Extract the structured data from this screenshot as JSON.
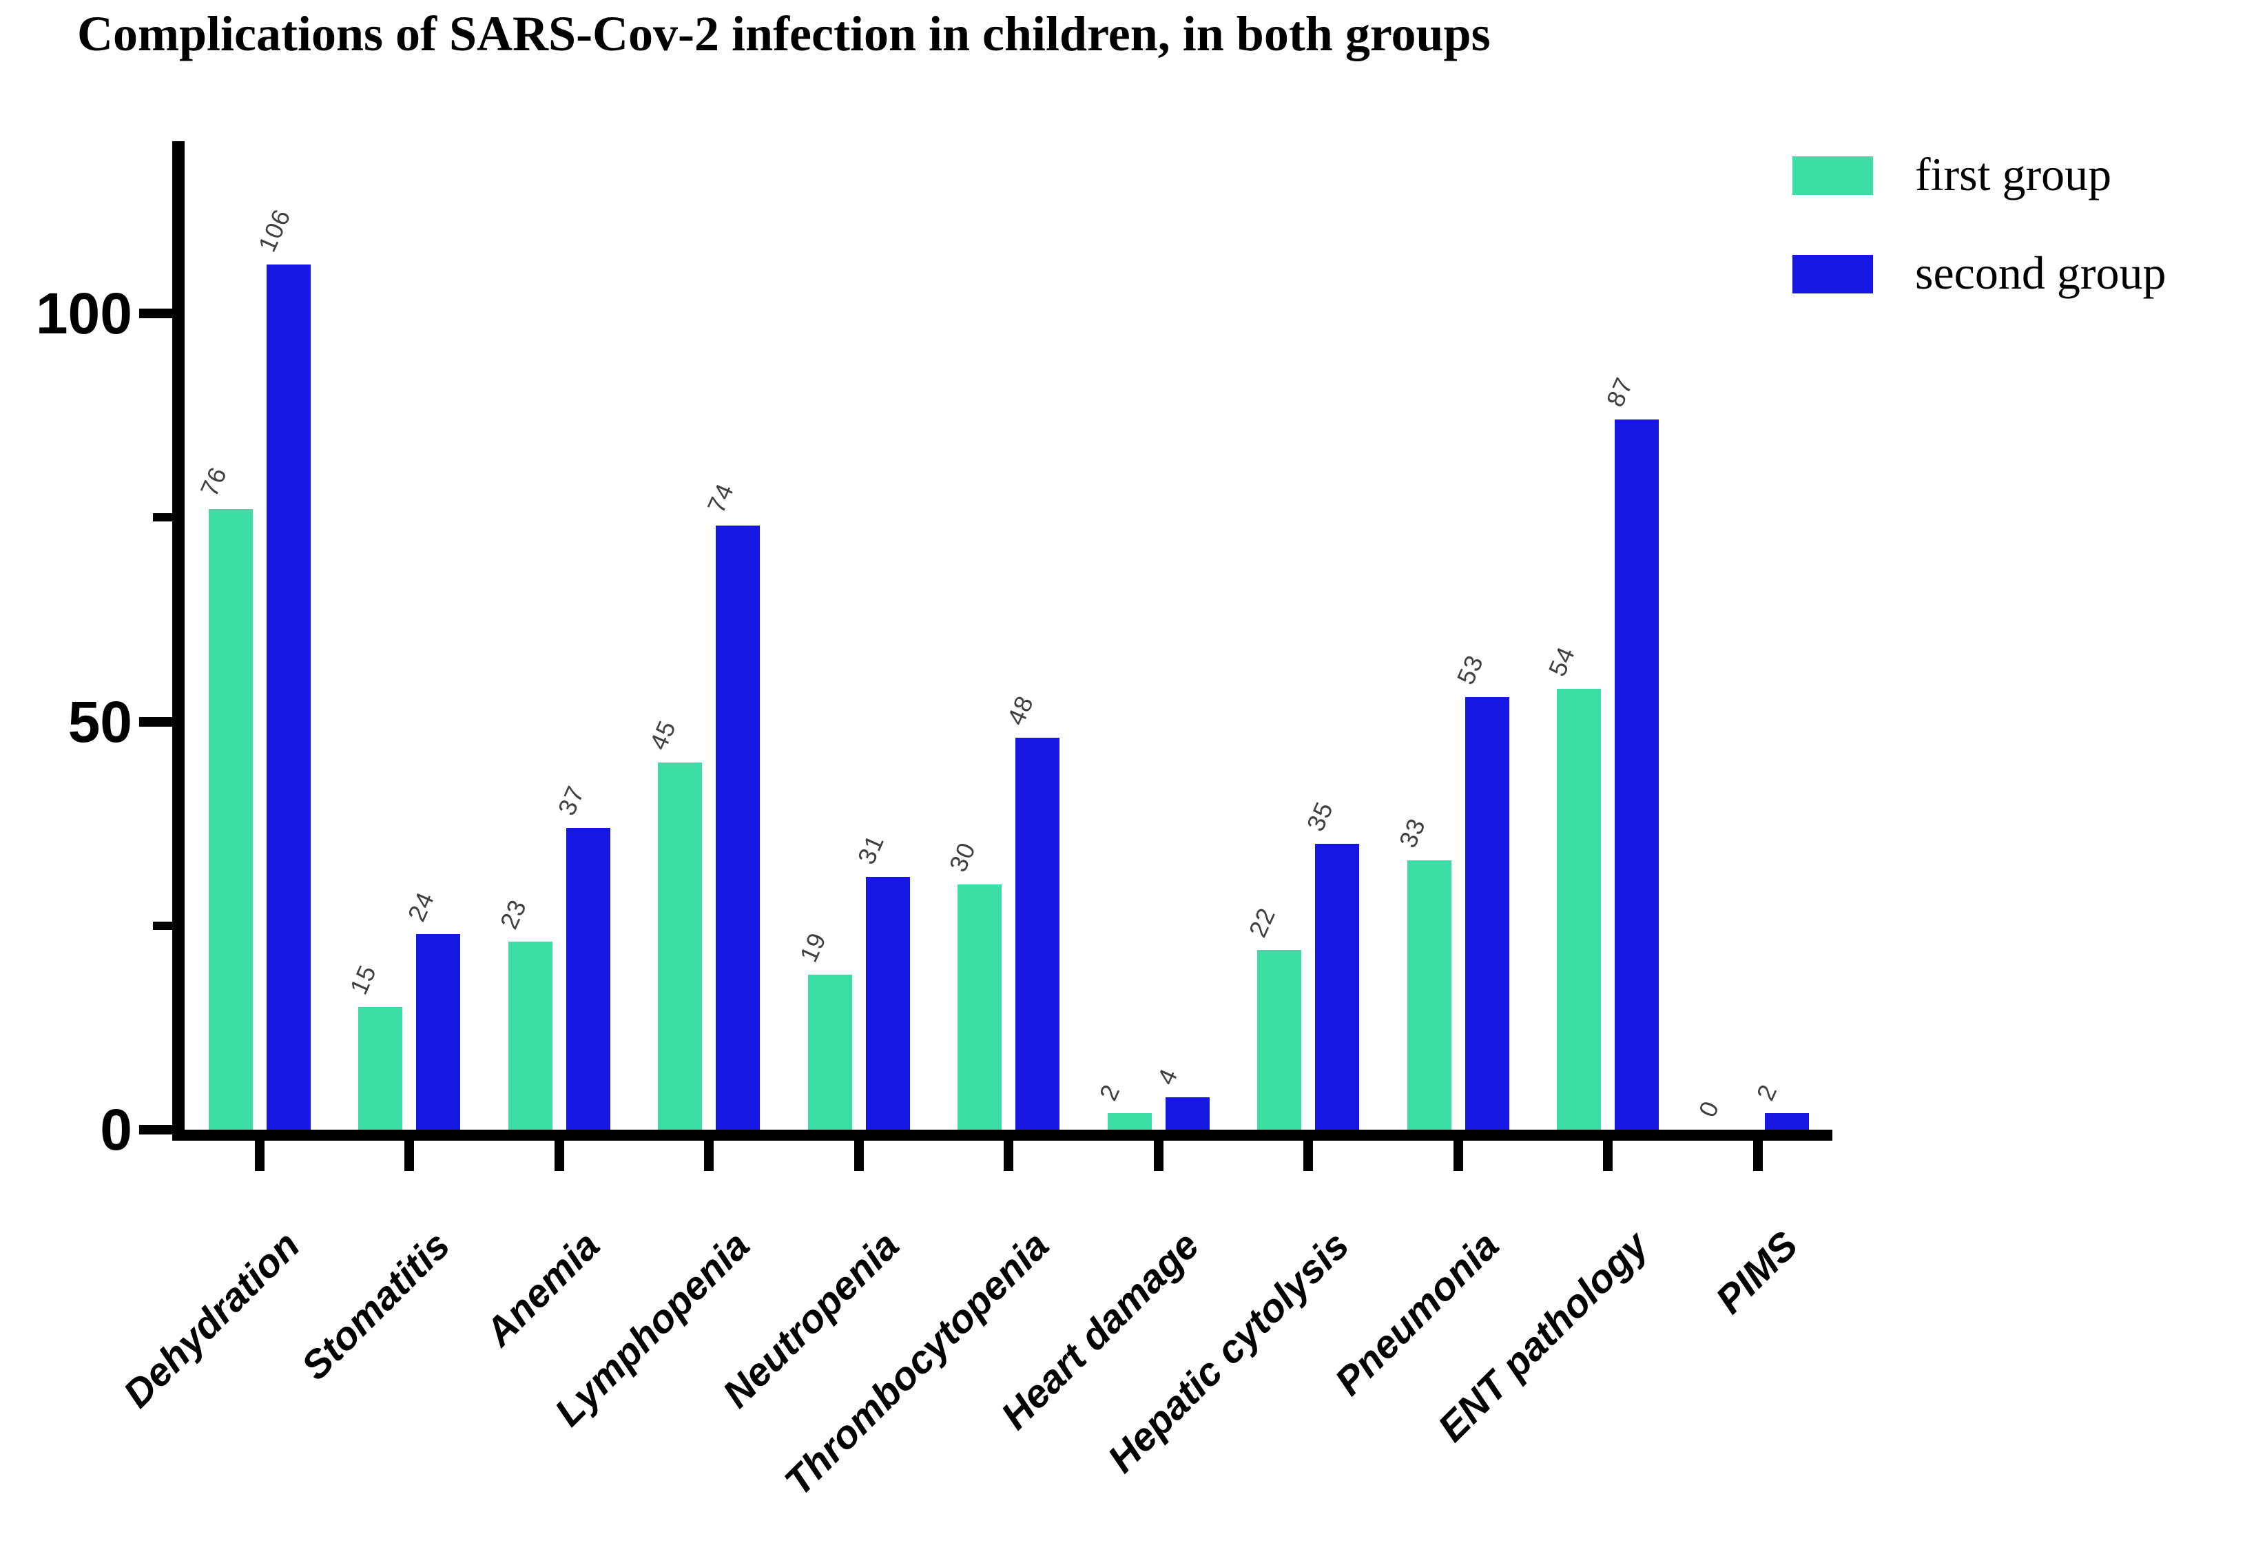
{
  "title": "Complications of SARS-Cov-2 infection in children, in both groups",
  "legend": {
    "items": [
      {
        "label": "first group",
        "color": "#3CDEA5"
      },
      {
        "label": "second group",
        "color": "#1717E2"
      }
    ],
    "position": "top-right"
  },
  "y_axis": {
    "major_ticks": [
      "0",
      "50",
      "100"
    ],
    "minor_ticks": [
      25,
      75
    ]
  },
  "chart_data": {
    "type": "bar",
    "title": "Complications of SARS-Cov-2 infection in children, in both groups",
    "categories": [
      "Dehydration",
      "Stomatitis",
      "Anemia",
      "Lymphopenia",
      "Neutropenia",
      "Thrombocytopenia",
      "Heart damage",
      "Hepatic cytolysis",
      "Pneumonia",
      "ENT pathology",
      "PIMS"
    ],
    "series": [
      {
        "name": "first group",
        "color": "#3CDEA5",
        "values": [
          76,
          15,
          23,
          45,
          19,
          30,
          2,
          22,
          33,
          54,
          0
        ]
      },
      {
        "name": "second group",
        "color": "#1717E2",
        "values": [
          106,
          24,
          37,
          74,
          31,
          48,
          4,
          35,
          53,
          87,
          2
        ]
      }
    ],
    "xlabel": "",
    "ylabel": "",
    "ylim": [
      0,
      120
    ],
    "y_major_ticks": [
      0,
      50,
      100
    ],
    "y_minor_ticks": [
      25,
      75
    ],
    "grid": false,
    "bar_value_labels": true,
    "legend_position": "top-right",
    "axis_color": "#000000",
    "value_label_color": "#3f3f3f"
  }
}
